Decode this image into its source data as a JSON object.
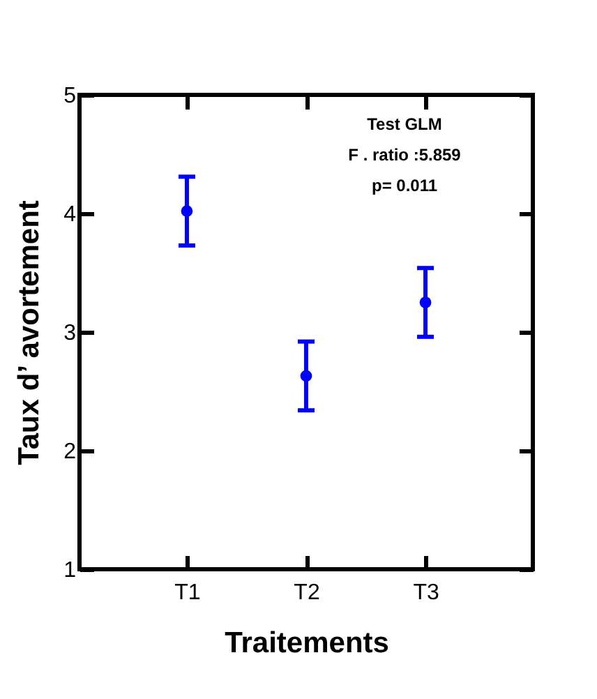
{
  "chart_data": {
    "type": "scatter",
    "xlabel": "Traitements",
    "ylabel": "Taux d’ avortement",
    "categories": [
      "T1",
      "T2",
      "T3"
    ],
    "series": [
      {
        "color": "#0000ff",
        "values": [
          4.02,
          2.63,
          3.25
        ],
        "errors": [
          0.29,
          0.29,
          0.29
        ]
      }
    ],
    "ylim": [
      1,
      5
    ],
    "yticks": [
      1,
      2,
      3,
      4,
      5
    ],
    "grid": false,
    "marker": "circle",
    "annotations": [
      "Test GLM",
      "F . ratio :5.859",
      "p= 0.011"
    ]
  }
}
